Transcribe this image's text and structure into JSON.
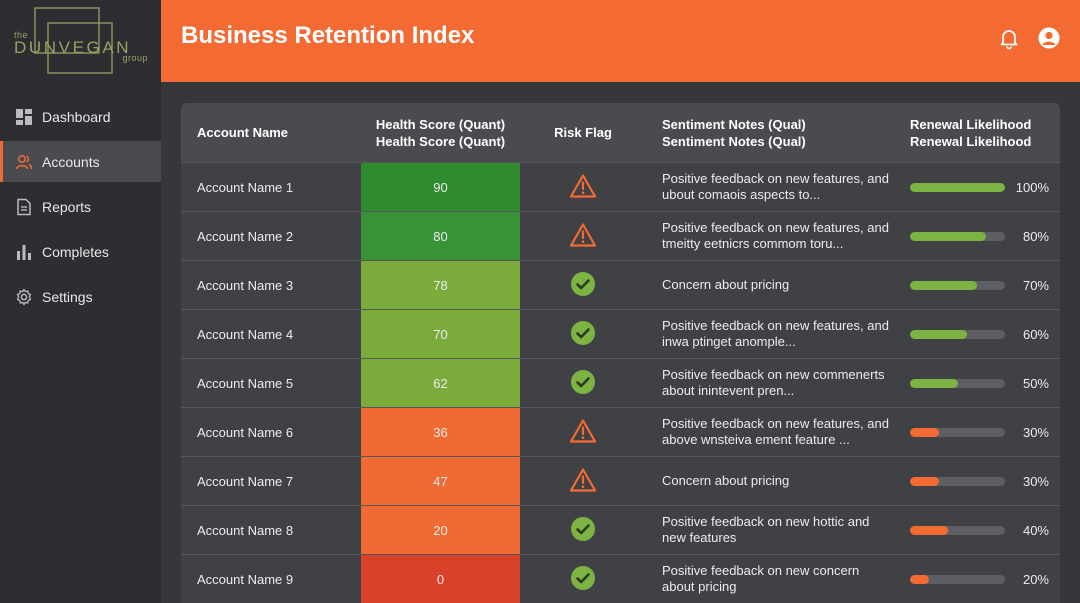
{
  "brand": {
    "the": "the",
    "name": "DUNVEGAN",
    "group": "group"
  },
  "nav": [
    {
      "label": "Dashboard",
      "icon": "dashboard-icon"
    },
    {
      "label": "Accounts",
      "icon": "users-icon",
      "active": true
    },
    {
      "label": "Reports",
      "icon": "document-icon"
    },
    {
      "label": "Completes",
      "icon": "bar-chart-icon"
    },
    {
      "label": "Settings",
      "icon": "gear-icon"
    }
  ],
  "header": {
    "title": "Business Retention Index"
  },
  "colors": {
    "accent": "#f36b33",
    "green_bar": "#7cb342",
    "orange_bar": "#f36b33"
  },
  "table": {
    "headers": {
      "account": "Account Name",
      "health_1": "Health Score (Quant)",
      "health_2": "Health Score (Quant)",
      "risk": "Risk Flag",
      "sentiment_1": "Sentiment Notes (Qual)",
      "sentiment_2": "Sentiment Notes (Qual)",
      "renewal_1": "Renewal Likelihood",
      "renewal_2": "Renewal Likelihood"
    },
    "rows": [
      {
        "name": "Account Name 1",
        "score": "90",
        "score_color": "#2e8b2e",
        "risk": "warning",
        "note": "Positive feedback on new features, and ubout comaois aspects to...",
        "renewal": 100,
        "renewal_label": "100%"
      },
      {
        "name": "Account Name 2",
        "score": "80",
        "score_color": "#389238",
        "risk": "warning",
        "note": "Positive feedback on new features, and tmeitty eetnicrs commom toru...",
        "renewal": 80,
        "renewal_label": "80%"
      },
      {
        "name": "Account Name 3",
        "score": "78",
        "score_color": "#7aab3b",
        "risk": "ok",
        "note": "Concern about pricing",
        "renewal": 70,
        "renewal_label": "70%"
      },
      {
        "name": "Account Name 4",
        "score": "70",
        "score_color": "#7aab3b",
        "risk": "ok",
        "note": "Positive feedback on new features, and inwa ptinget anomple...",
        "renewal": 60,
        "renewal_label": "60%"
      },
      {
        "name": "Account Name 5",
        "score": "62",
        "score_color": "#7aab3b",
        "risk": "ok",
        "note": "Positive feedback on new commenerts about inintevent pren...",
        "renewal": 50,
        "renewal_label": "50%"
      },
      {
        "name": "Account Name 6",
        "score": "36",
        "score_color": "#f06a34",
        "risk": "warning",
        "note": "Positive feedback on new features, and above wnsteiva ement feature ...",
        "renewal": 30,
        "renewal_label": "30%"
      },
      {
        "name": "Account Name 7",
        "score": "47",
        "score_color": "#f06a34",
        "risk": "warning",
        "note": "Concern about pricing",
        "renewal": 30,
        "renewal_label": "30%"
      },
      {
        "name": "Account Name 8",
        "score": "20",
        "score_color": "#f06a34",
        "risk": "ok",
        "note": "Positive feedback on new hottic and new features",
        "renewal": 40,
        "renewal_label": "40%"
      },
      {
        "name": "Account Name 9",
        "score": "0",
        "score_color": "#d9412b",
        "risk": "ok",
        "note": "Positive feedback on new concern about pricing",
        "renewal": 20,
        "renewal_label": "20%"
      }
    ]
  }
}
